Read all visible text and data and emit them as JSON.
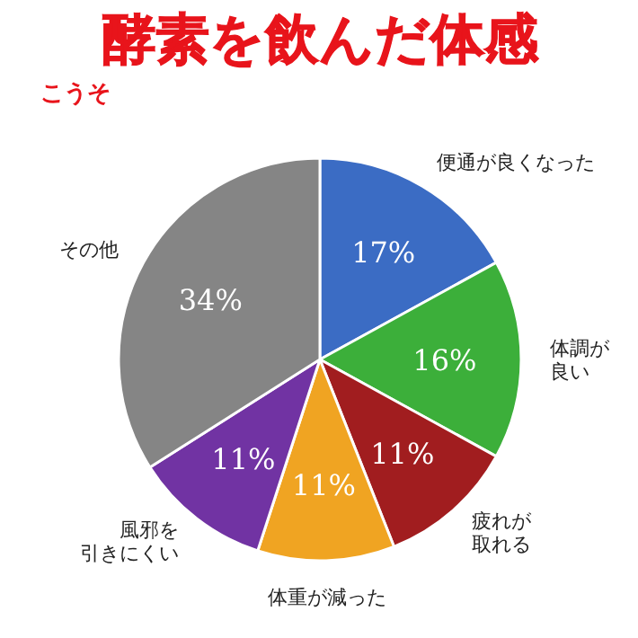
{
  "chart_data": {
    "type": "pie",
    "title": "酵素を飲んだ体感",
    "subtitle": "こうそ",
    "categories": [
      "便通が良くなった",
      "体調が良い",
      "疲れが取れる",
      "体重が減った",
      "風邪を引きにくい",
      "その他"
    ],
    "values": [
      17,
      16,
      11,
      11,
      11,
      34
    ],
    "colors": [
      "#3b6cc4",
      "#3caf3a",
      "#a11d1f",
      "#f0a422",
      "#7133a3",
      "#858585"
    ],
    "value_labels": [
      "17%",
      "16%",
      "11%",
      "11%",
      "11%",
      "34%"
    ]
  }
}
